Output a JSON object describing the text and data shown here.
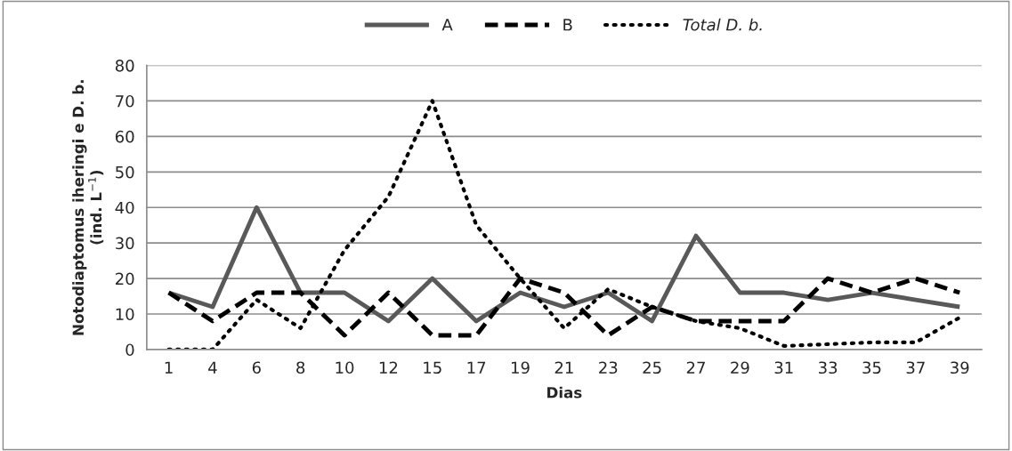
{
  "chart_data": {
    "type": "line",
    "xlabel": "Dias",
    "ylabel": "Notodiaptomus iheringi e D. b.\n(ind. L$^{−1}$)",
    "categories": [
      "1",
      "4",
      "6",
      "8",
      "10",
      "12",
      "15",
      "17",
      "19",
      "21",
      "23",
      "25",
      "27",
      "29",
      "31",
      "33",
      "35",
      "37",
      "39"
    ],
    "series": [
      {
        "name": "A",
        "color": "#595959",
        "line_style": "solid",
        "values": [
          16,
          12,
          40,
          16,
          16,
          8,
          20,
          8,
          16,
          12,
          16,
          8,
          32,
          16,
          16,
          14,
          16,
          14,
          12
        ]
      },
      {
        "name": "B",
        "color": "#000000",
        "line_style": "dashed",
        "values": [
          16,
          8,
          16,
          16,
          4,
          16,
          4,
          4,
          20,
          16,
          4,
          12,
          8,
          8,
          8,
          20,
          16,
          20,
          16
        ]
      },
      {
        "name": "Total D. b.",
        "color": "#000000",
        "line_style": "dotted",
        "values": [
          0,
          0,
          14,
          6,
          28,
          43,
          70,
          35,
          20,
          6,
          17,
          12,
          8,
          6,
          1,
          1.5,
          2,
          2,
          9
        ]
      }
    ],
    "ylim": [
      0,
      80
    ],
    "yticks": [
      0,
      10,
      20,
      30,
      40,
      50,
      60,
      70,
      80
    ],
    "grid": "y",
    "legend": "top"
  }
}
